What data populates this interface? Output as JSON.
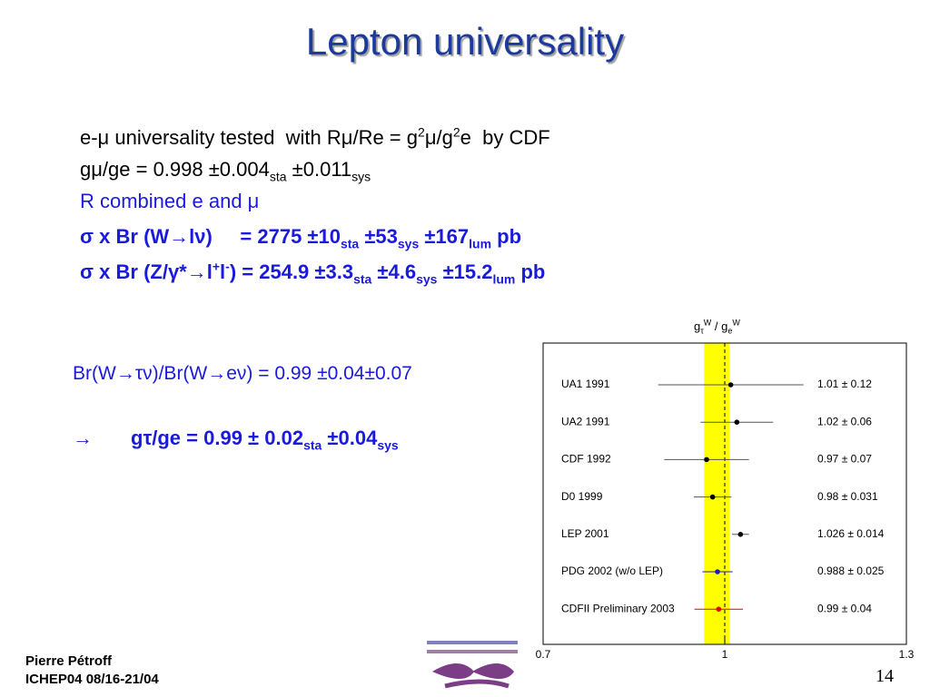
{
  "title": "Lepton universality",
  "bullets": [
    [
      "e-μ universality tested  with Rμ/Re = g",
      "2",
      "μ/g",
      "2",
      "e  by CDF"
    ],
    [
      "gμ/ge = 0.998 ±0.004",
      "sta",
      " ±0.011",
      "sys"
    ],
    [
      "R combined e and μ"
    ],
    [
      "σ x Br (W→lν)     = 2775 ±10",
      "sta",
      " ±53",
      "sys",
      " ±167",
      "lum",
      " pb"
    ],
    [
      "σ x Br (Z/γ*→l",
      "+",
      "l",
      "-",
      ") = 254.9 ±3.3",
      "sta",
      " ±4.6",
      "sys",
      " ±15.2",
      "lum",
      " pb"
    ]
  ],
  "ratio": "Br(W→τν)/Br(W→eν) = 0.99 ±0.04±0.07",
  "result": [
    "→",
    "gτ/ge = 0.99 ± 0.02",
    "sta",
    " ±0.04",
    "sys"
  ],
  "footer": {
    "author": "Pierre Pétroff",
    "conference": "ICHEP04 08/16-21/04",
    "page": "14"
  },
  "chart_data": {
    "type": "errorbar",
    "x_label": [
      "g",
      "τ",
      "W",
      " / g",
      "e",
      "W"
    ],
    "categories": [
      "UA1 1991",
      "UA2 1991",
      "CDF 1992",
      "D0  1999",
      "LEP 2001",
      "PDG 2002 (w/o LEP)",
      "CDFII Preliminary 2003"
    ],
    "values": [
      1.01,
      1.02,
      0.97,
      0.98,
      1.026,
      0.988,
      0.99
    ],
    "errors": [
      0.12,
      0.06,
      0.07,
      0.031,
      0.014,
      0.025,
      0.04
    ],
    "value_labels": [
      "1.01 ± 0.12",
      "1.02 ± 0.06",
      "0.97 ± 0.07",
      "0.98 ± 0.031",
      "1.026 ± 0.014",
      "0.988 ± 0.025",
      "0.99 ± 0.04"
    ],
    "colors": [
      "#000000",
      "#000000",
      "#000000",
      "#000000",
      "#000000",
      "#1a1acc",
      "#e00000"
    ],
    "band": [
      0.966,
      1.008
    ],
    "band_color": "#ffff00",
    "reference_line": 1,
    "xlim": [
      0.7,
      1.3
    ],
    "xticks": [
      0.7,
      1,
      1.3
    ]
  }
}
